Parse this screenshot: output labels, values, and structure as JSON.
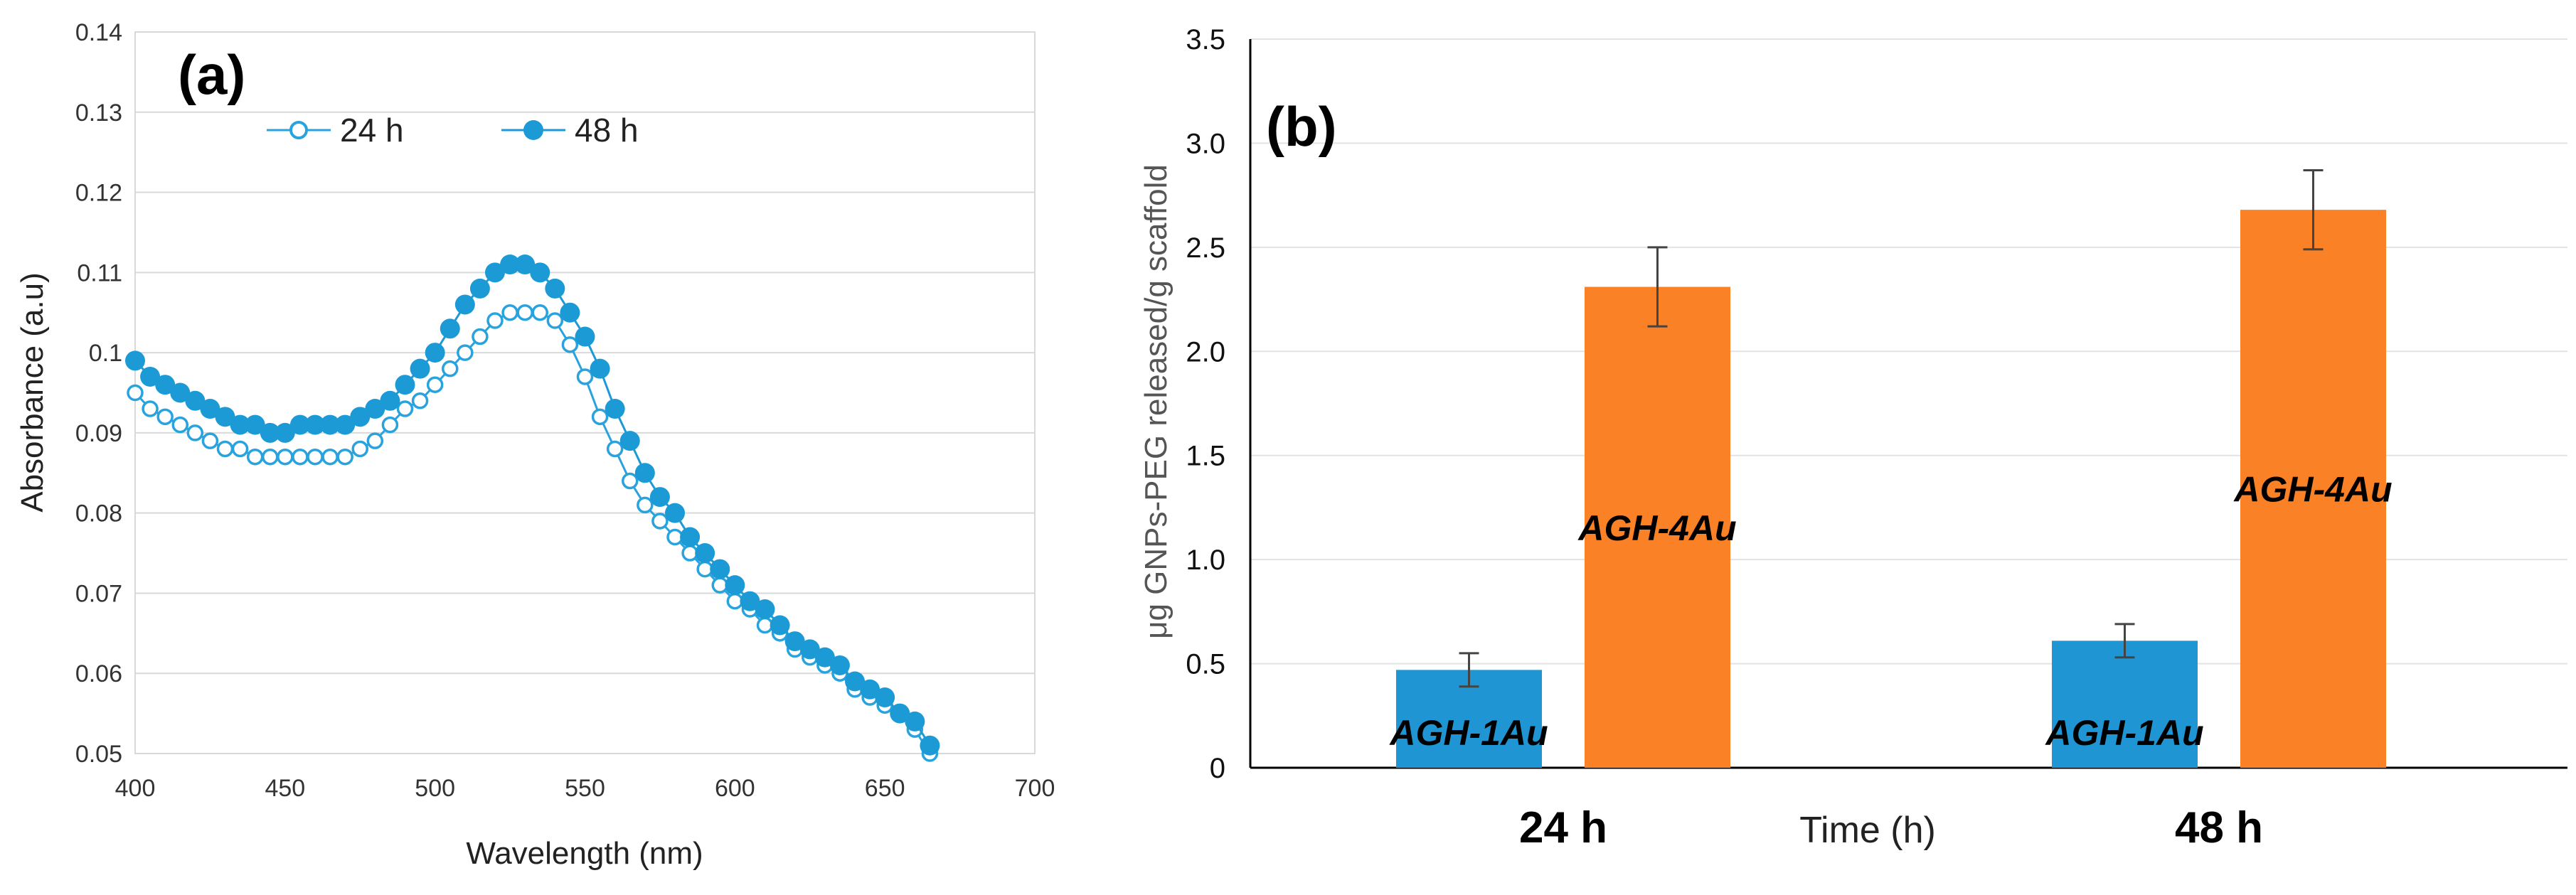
{
  "chart_data": [
    {
      "type": "line",
      "panel_label": "(a)",
      "xlabel": "Wavelength (nm)",
      "ylabel": "Absorbance (a.u)",
      "xlim": [
        400,
        700
      ],
      "ylim": [
        0.05,
        0.14
      ],
      "xticks": [
        "400",
        "450",
        "500",
        "550",
        "600",
        "650",
        "700"
      ],
      "yticks": [
        "0.05",
        "0.06",
        "0.07",
        "0.08",
        "0.09",
        "0.1",
        "0.11",
        "0.12",
        "0.13",
        "0.14"
      ],
      "legend_position": "top-left",
      "x": [
        400,
        405,
        410,
        415,
        420,
        425,
        430,
        435,
        440,
        445,
        450,
        455,
        460,
        465,
        470,
        475,
        480,
        485,
        490,
        495,
        500,
        505,
        510,
        515,
        520,
        525,
        530,
        535,
        540,
        545,
        550,
        555,
        560,
        565,
        570,
        575,
        580,
        585,
        590,
        595,
        600,
        605,
        610,
        615,
        620,
        625,
        630,
        635,
        640,
        645,
        650,
        655,
        660,
        665
      ],
      "series": [
        {
          "name": "24 h",
          "color": "#29a3dd",
          "marker": "open-circle",
          "values": [
            0.095,
            0.093,
            0.092,
            0.091,
            0.09,
            0.089,
            0.088,
            0.088,
            0.087,
            0.087,
            0.087,
            0.087,
            0.087,
            0.087,
            0.087,
            0.088,
            0.089,
            0.091,
            0.093,
            0.094,
            0.096,
            0.098,
            0.1,
            0.102,
            0.104,
            0.105,
            0.105,
            0.105,
            0.104,
            0.101,
            0.097,
            0.092,
            0.088,
            0.084,
            0.081,
            0.079,
            0.077,
            0.075,
            0.073,
            0.071,
            0.069,
            0.068,
            0.066,
            0.065,
            0.063,
            0.062,
            0.061,
            0.06,
            0.058,
            0.057,
            0.056,
            0.055,
            0.053,
            0.05
          ]
        },
        {
          "name": "48 h",
          "color": "#1c9ad6",
          "marker": "filled-circle",
          "values": [
            0.099,
            0.097,
            0.096,
            0.095,
            0.094,
            0.093,
            0.092,
            0.091,
            0.091,
            0.09,
            0.09,
            0.091,
            0.091,
            0.091,
            0.091,
            0.092,
            0.093,
            0.094,
            0.096,
            0.098,
            0.1,
            0.103,
            0.106,
            0.108,
            0.11,
            0.111,
            0.111,
            0.11,
            0.108,
            0.105,
            0.102,
            0.098,
            0.093,
            0.089,
            0.085,
            0.082,
            0.08,
            0.077,
            0.075,
            0.073,
            0.071,
            0.069,
            0.068,
            0.066,
            0.064,
            0.063,
            0.062,
            0.061,
            0.059,
            0.058,
            0.057,
            0.055,
            0.054,
            0.051
          ]
        }
      ]
    },
    {
      "type": "bar",
      "panel_label": "(b)",
      "xlabel": "Time (h)",
      "ylabel": "μg GNPs-PEG released/g scaffold",
      "ylim": [
        0,
        3.5
      ],
      "yticks": [
        "0",
        "0.5",
        "1.0",
        "1.5",
        "2.0",
        "2.5",
        "3.0",
        "3.5"
      ],
      "categories": [
        "24 h",
        "48 h"
      ],
      "series": [
        {
          "name": "AGH-1Au",
          "color": "#1f96d3",
          "values": [
            0.47,
            0.61
          ],
          "errors": [
            0.08,
            0.08
          ],
          "label_position": "bottom"
        },
        {
          "name": "AGH-4Au",
          "color": "#fa8125",
          "values": [
            2.31,
            2.68
          ],
          "errors": [
            0.19,
            0.19
          ],
          "label_position": "middle"
        }
      ]
    }
  ]
}
